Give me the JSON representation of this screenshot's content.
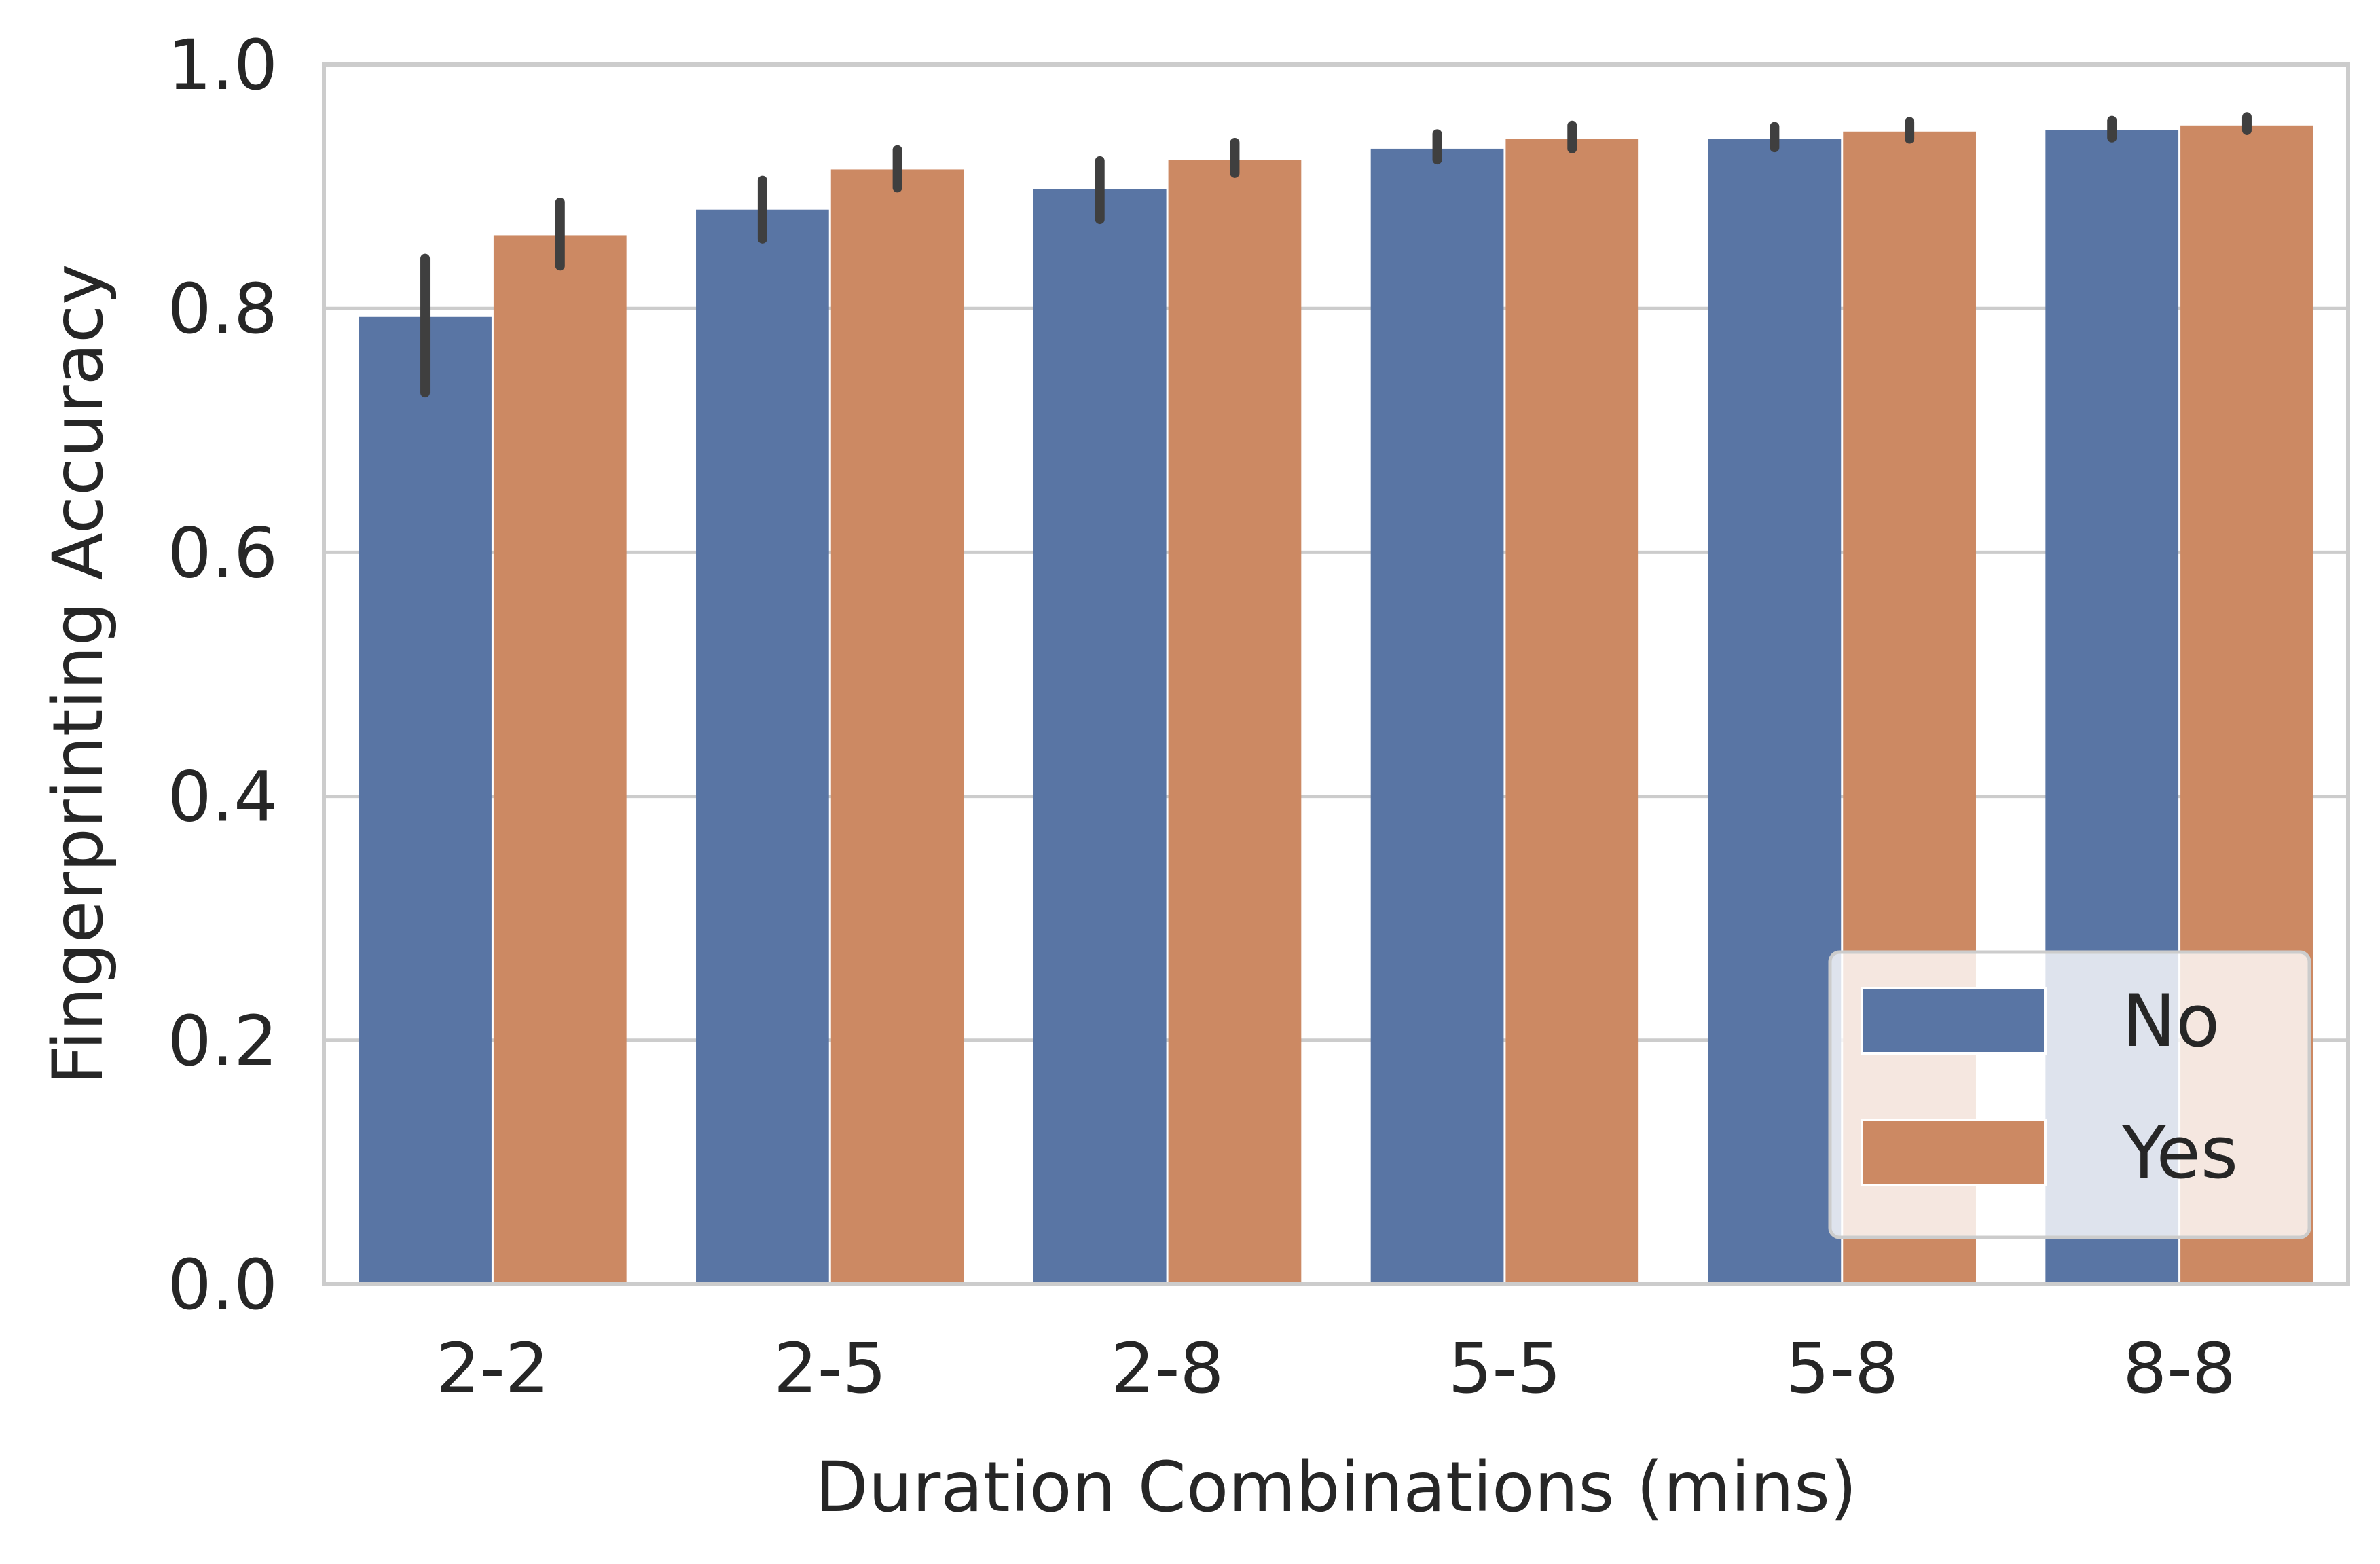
{
  "chart_data": {
    "type": "bar",
    "xlabel": "Duration Combinations (mins)",
    "ylabel": "Fingerprinting Accuracy",
    "categories": [
      "2-2",
      "2-5",
      "2-8",
      "5-5",
      "5-8",
      "8-8"
    ],
    "ylim": [
      0,
      1.0
    ],
    "yticks": [
      "0.0",
      "0.2",
      "0.4",
      "0.6",
      "0.8",
      "1.0"
    ],
    "grid": "horizontal",
    "legend_position": "bottom-right",
    "series": [
      {
        "name": "No",
        "color": "#5975a4",
        "values": [
          0.793,
          0.881,
          0.898,
          0.931,
          0.939,
          0.946
        ],
        "ci_low": [
          0.731,
          0.857,
          0.873,
          0.922,
          0.932,
          0.94
        ],
        "ci_high": [
          0.841,
          0.905,
          0.921,
          0.943,
          0.949,
          0.954
        ]
      },
      {
        "name": "Yes",
        "color": "#cc8963",
        "values": [
          0.86,
          0.914,
          0.922,
          0.939,
          0.945,
          0.95
        ],
        "ci_low": [
          0.835,
          0.899,
          0.911,
          0.931,
          0.939,
          0.946
        ],
        "ci_high": [
          0.887,
          0.93,
          0.936,
          0.95,
          0.953,
          0.957
        ]
      }
    ],
    "errorbar_color": "#3f3f3f",
    "grid_color": "#cccccc"
  }
}
